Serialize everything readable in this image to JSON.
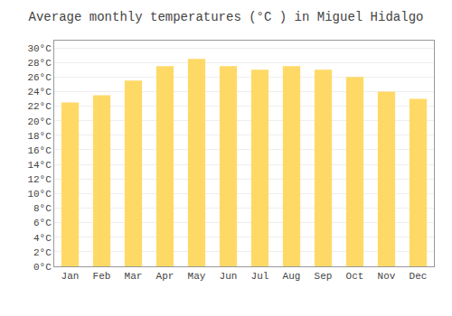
{
  "chart_data": {
    "type": "bar",
    "title": "Average monthly temperatures (°C ) in Miguel Hidalgo",
    "categories": [
      "Jan",
      "Feb",
      "Mar",
      "Apr",
      "May",
      "Jun",
      "Jul",
      "Aug",
      "Sep",
      "Oct",
      "Nov",
      "Dec"
    ],
    "values": [
      22.5,
      23.5,
      25.5,
      27.5,
      28.5,
      27.5,
      27.0,
      27.5,
      27.0,
      26.0,
      24.0,
      23.0
    ],
    "color": "#FFD966",
    "ylim": [
      0,
      31
    ],
    "yticks": [
      {
        "value": 0,
        "label": "0°C"
      },
      {
        "value": 2,
        "label": "2°C"
      },
      {
        "value": 4,
        "label": "4°C"
      },
      {
        "value": 6,
        "label": "6°C"
      },
      {
        "value": 8,
        "label": "8°C"
      },
      {
        "value": 10,
        "label": "10°C"
      },
      {
        "value": 12,
        "label": "12°C"
      },
      {
        "value": 14,
        "label": "14°C"
      },
      {
        "value": 16,
        "label": "16°C"
      },
      {
        "value": 18,
        "label": "18°C"
      },
      {
        "value": 20,
        "label": "20°C"
      },
      {
        "value": 22,
        "label": "22°C"
      },
      {
        "value": 24,
        "label": "24°C"
      },
      {
        "value": 26,
        "label": "26°C"
      },
      {
        "value": 28,
        "label": "28°C"
      },
      {
        "value": 30,
        "label": "30°C"
      }
    ],
    "grid": true
  }
}
